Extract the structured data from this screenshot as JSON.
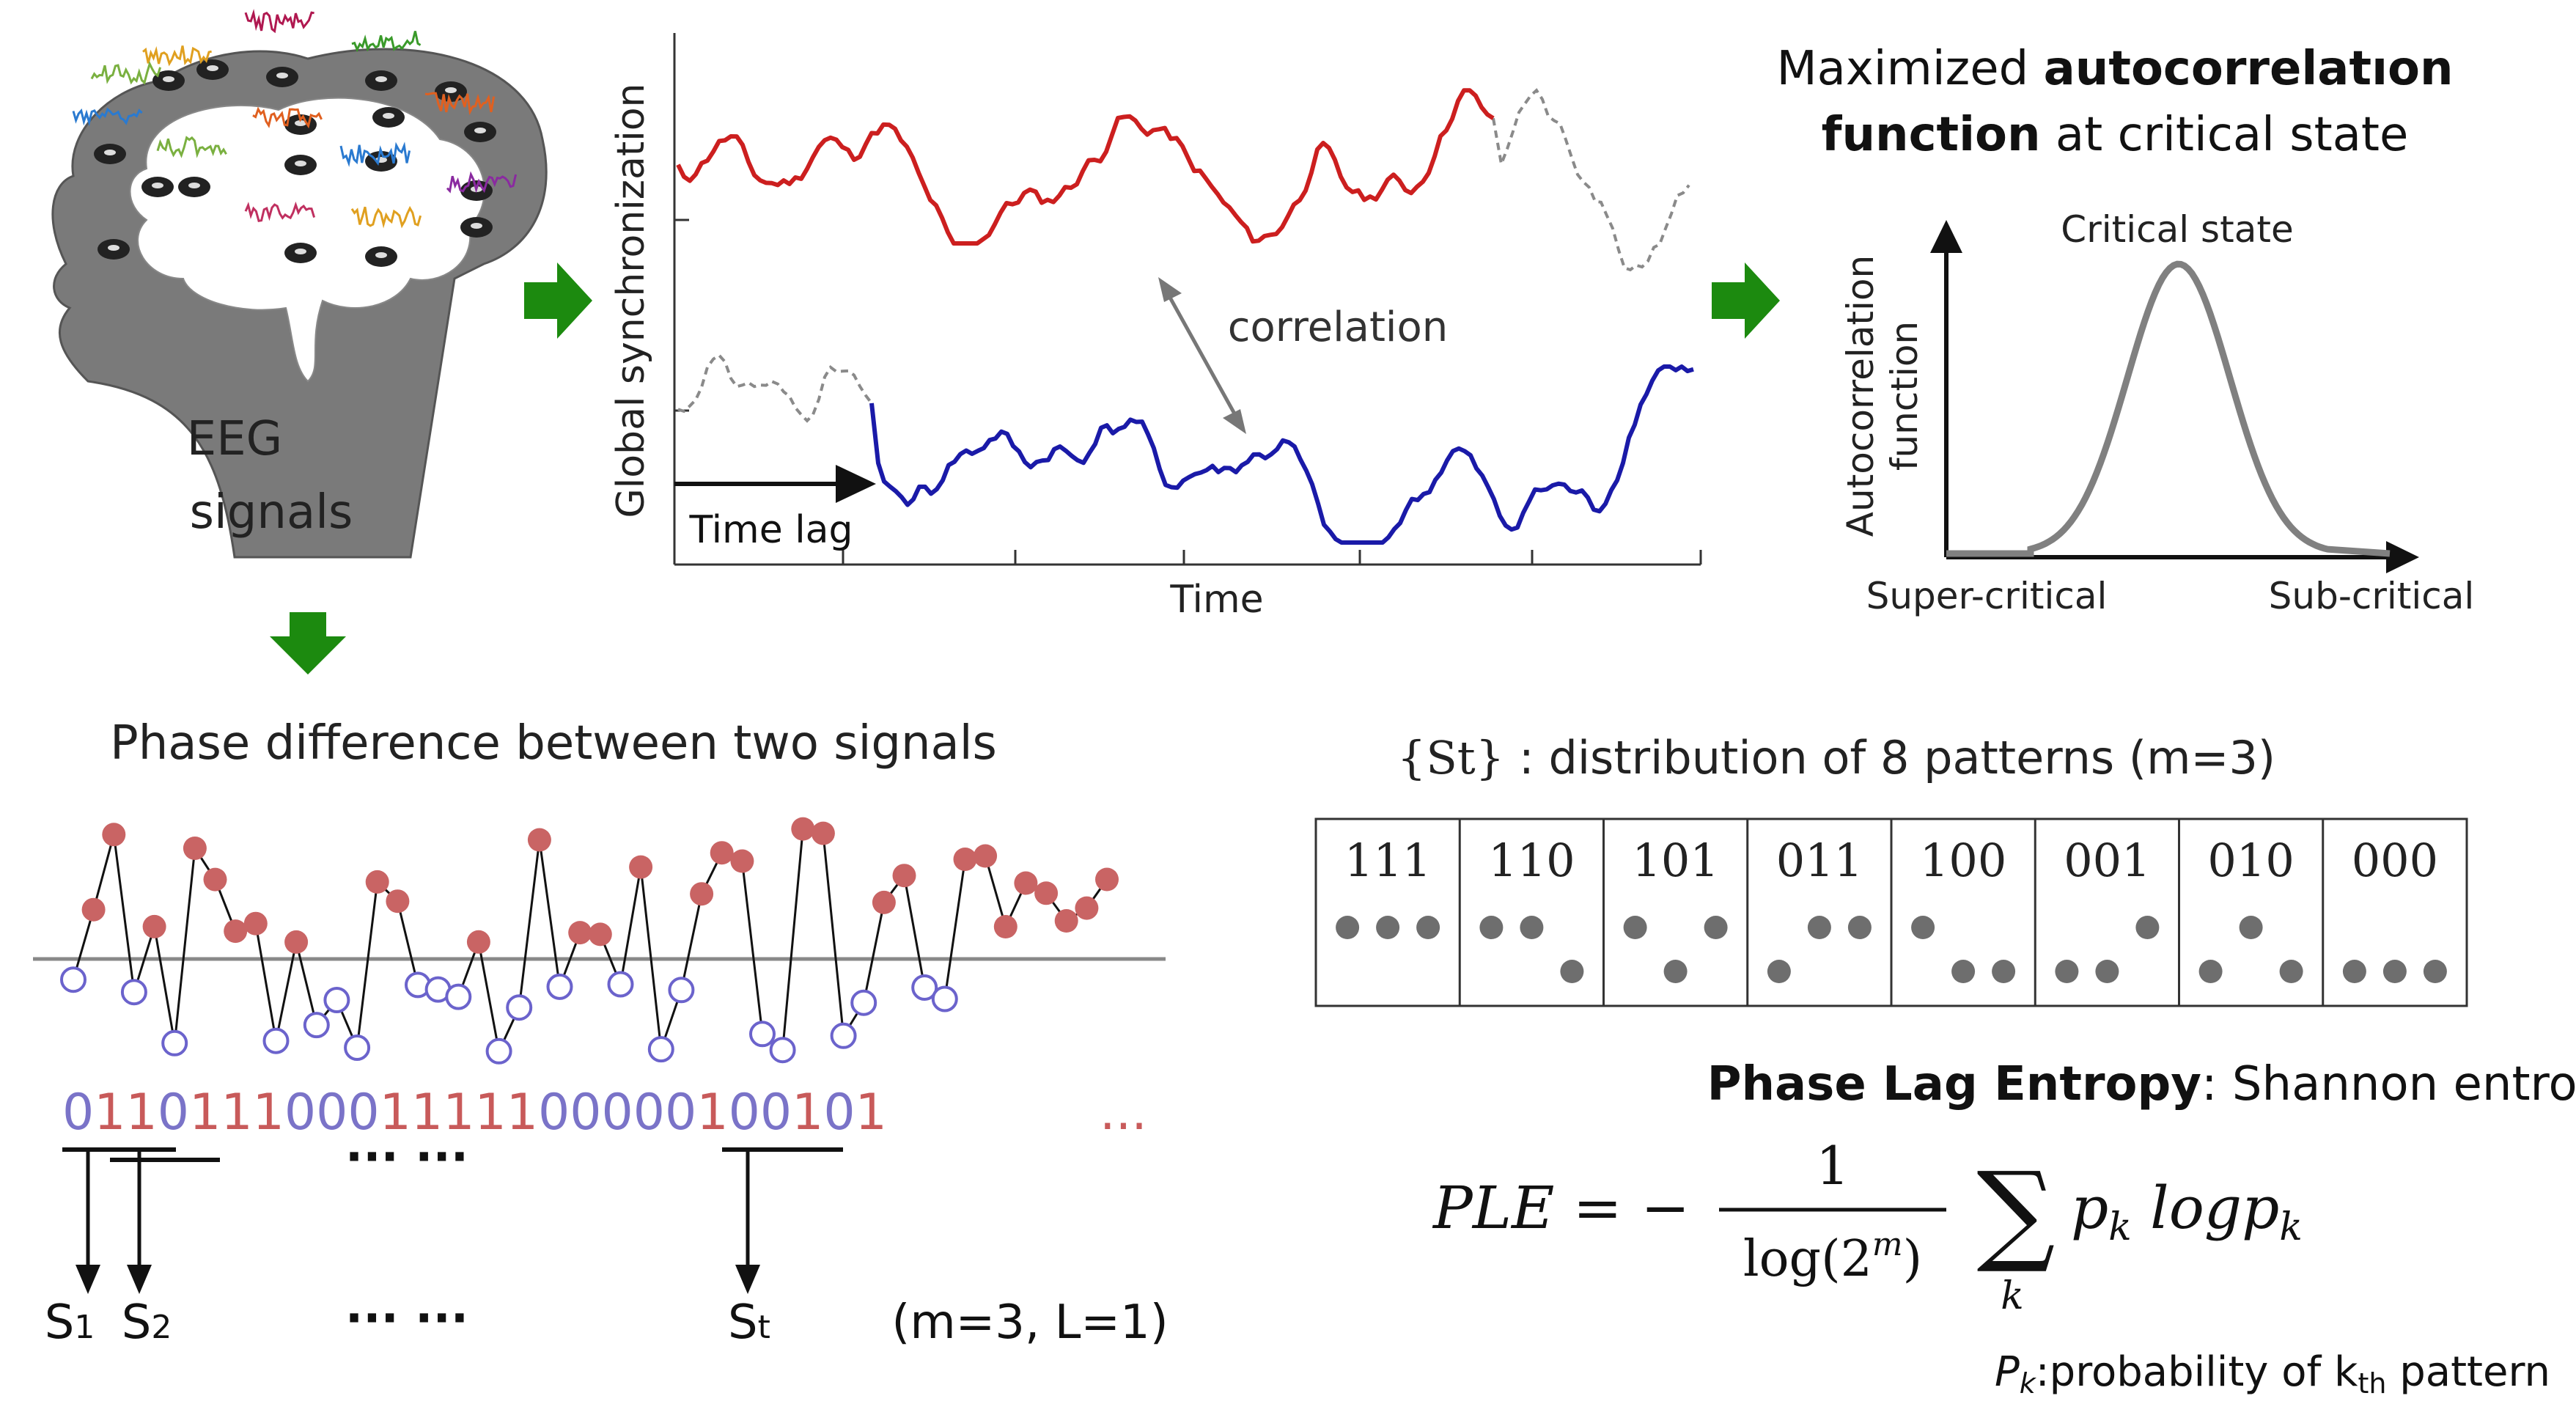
{
  "colors": {
    "red_signal": "#cc1f1f",
    "blue_signal": "#1a1aa8",
    "dashed": "#8a8a8a",
    "arrow_green": "#1c8a0f",
    "head": "#7a7a7a",
    "bin_zero": "#7a73c8",
    "bin_one": "#c85a5a",
    "dot_fill_red": "#c96464",
    "dot_stroke_blue": "#6b63cc",
    "pattern_dot": "#6e6e6e"
  },
  "eeg": {
    "label_line1": "EEG",
    "label_line2": "signals"
  },
  "sync_plot": {
    "ylabel": "Global synchronization",
    "xlabel": "Time",
    "correlation_label": "correlation",
    "time_lag_label": "Time lag"
  },
  "autocorr": {
    "title_line1_normal": "Maximized ",
    "title_line1_bold": "autocorrelatıon",
    "title_line2_bold": "function",
    "title_line2_normal": " at critical state",
    "ylabel_line1": "Autocorrelation",
    "ylabel_line2": "function",
    "peak_label": "Critical state",
    "left_label": "Super-critical",
    "right_label": "Sub-critical"
  },
  "phase": {
    "title": "Phase difference between two signals",
    "binary_digits": [
      "0",
      "1",
      "1",
      "0",
      "1",
      "1",
      "1",
      "0",
      "0",
      "0",
      "1",
      "1",
      "1",
      "1",
      "1",
      "0",
      "0",
      "0",
      "0",
      "0",
      "1",
      "0",
      "0",
      "1",
      "0",
      "1"
    ],
    "trailing_dots": "...",
    "dots_upper": "··· ···",
    "dots_lower": "··· ···",
    "s1_main": "S",
    "s1_sub": "1",
    "s2_main": "S",
    "s2_sub": "2",
    "st_main": "S",
    "st_sub": "t",
    "params": "(m=3, L=1)"
  },
  "patterns": {
    "title_set": "{St}",
    "title_rest": " : distribution of 8 patterns (m=3)",
    "codes": [
      "111",
      "110",
      "101",
      "011",
      "100",
      "001",
      "010",
      "000"
    ]
  },
  "ple": {
    "title_bold": "Phase Lag Entropy",
    "title_rest": ": Shannon entropy of {Slt}",
    "formula_lhs": "PLE = −",
    "numerator": "1",
    "denominator": "log(2",
    "denominator_exp": "m",
    "denominator_close": ")",
    "sigma": "∑",
    "sigma_index": "k",
    "summand_p": "p",
    "summand_sub": "k",
    "summand_log": " logp",
    "summand_sub2": "k",
    "footnote_sym": "P",
    "footnote_sym_sub": "k",
    "footnote_text1": ":probability of k",
    "footnote_sub": "th",
    "footnote_text2": " pattern"
  }
}
